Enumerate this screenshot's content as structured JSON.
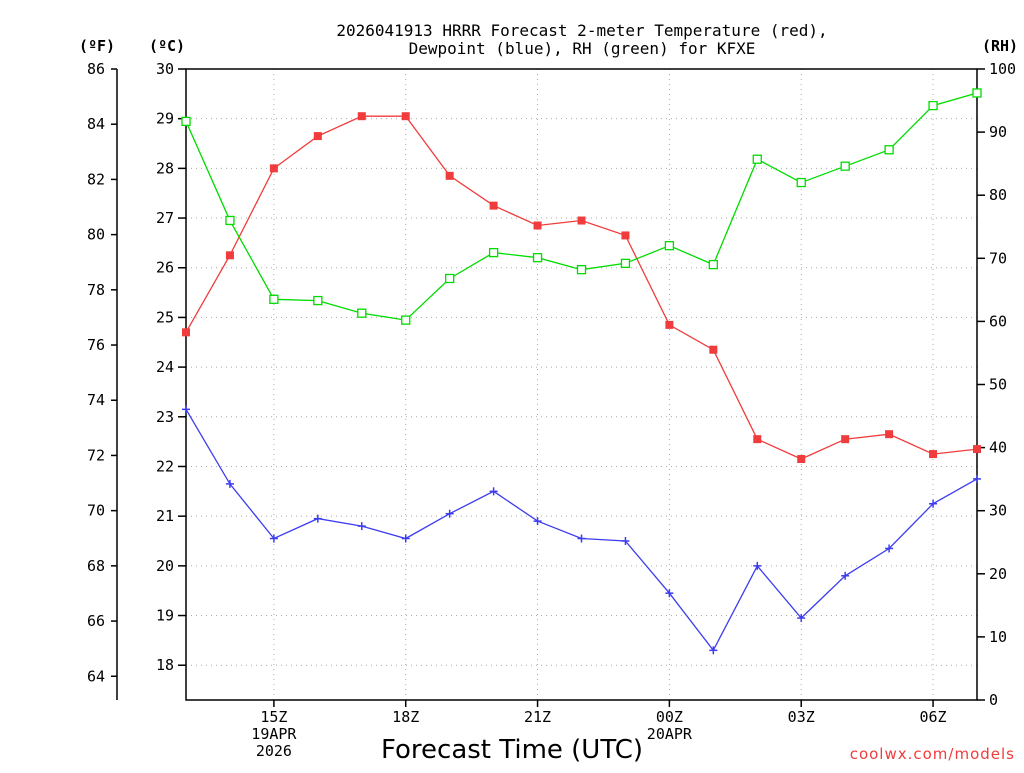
{
  "chart_data": {
    "type": "line",
    "title_line1": "2026041913 HRRR Forecast 2-meter Temperature (red),",
    "title_line2": "Dewpoint (blue), RH (green) for KFXE",
    "xlabel": "Forecast Time (UTC)",
    "credit": "coolwx.com/models",
    "units": {
      "fahrenheit": "(ºF)",
      "celsius": "(ºC)",
      "rh": "(RH)"
    },
    "x_hours_utc": [
      "13Z",
      "14Z",
      "15Z",
      "16Z",
      "17Z",
      "18Z",
      "19Z",
      "20Z",
      "21Z",
      "22Z",
      "23Z",
      "00Z",
      "01Z",
      "02Z",
      "03Z",
      "04Z",
      "05Z",
      "06Z",
      "07Z"
    ],
    "x_ticks": [
      {
        "label": "15Z",
        "index": 2,
        "sub1": "19APR",
        "sub2": "2026"
      },
      {
        "label": "18Z",
        "index": 5,
        "sub1": "",
        "sub2": ""
      },
      {
        "label": "21Z",
        "index": 8,
        "sub1": "",
        "sub2": ""
      },
      {
        "label": "00Z",
        "index": 11,
        "sub1": "20APR",
        "sub2": ""
      },
      {
        "label": "03Z",
        "index": 14,
        "sub1": "",
        "sub2": ""
      },
      {
        "label": "06Z",
        "index": 17,
        "sub1": "",
        "sub2": ""
      }
    ],
    "celsius_axis": {
      "range": [
        17.3,
        30
      ],
      "ticks": [
        18,
        19,
        20,
        21,
        22,
        23,
        24,
        25,
        26,
        27,
        28,
        29,
        30
      ]
    },
    "fahrenheit_axis": {
      "ticks": [
        64,
        66,
        68,
        70,
        72,
        74,
        76,
        78,
        80,
        82,
        84,
        86
      ]
    },
    "rh_axis": {
      "range": [
        0,
        100
      ],
      "ticks": [
        0,
        10,
        20,
        30,
        40,
        50,
        60,
        70,
        80,
        90,
        100
      ]
    },
    "series": [
      {
        "name": "Temperature",
        "axis": "celsius",
        "color": "#f03c3c",
        "marker": "filled-square",
        "values": [
          24.7,
          26.25,
          28.0,
          28.65,
          29.05,
          29.05,
          27.85,
          27.25,
          26.85,
          26.95,
          26.65,
          24.85,
          24.35,
          22.55,
          22.15,
          22.55,
          22.65,
          22.25,
          22.35
        ]
      },
      {
        "name": "Dewpoint",
        "axis": "celsius",
        "color": "#3c3cf0",
        "marker": "plus",
        "values": [
          23.15,
          21.65,
          20.55,
          20.95,
          20.8,
          20.55,
          21.05,
          21.5,
          20.9,
          20.55,
          20.5,
          19.45,
          18.3,
          20.0,
          18.95,
          19.8,
          20.35,
          21.25,
          21.75
        ]
      },
      {
        "name": "RH",
        "axis": "rh",
        "color": "#00dc00",
        "marker": "open-square",
        "values": [
          91.7,
          76.0,
          63.5,
          63.3,
          61.3,
          60.2,
          66.8,
          70.9,
          70.1,
          68.2,
          69.2,
          72.0,
          69.0,
          85.7,
          82.0,
          84.6,
          87.2,
          94.2,
          96.2
        ]
      }
    ],
    "grid": true
  }
}
